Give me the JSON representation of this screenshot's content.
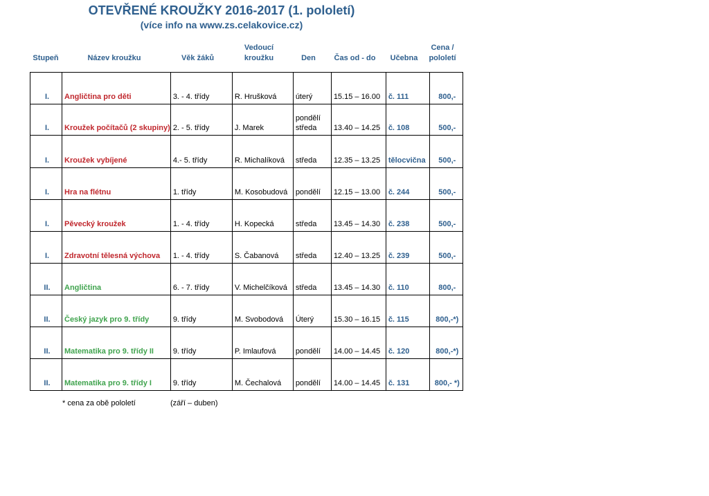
{
  "title": "OTEVŘENÉ KROUŽKY 2016-2017 (1. pololetí)",
  "subtitle": "(více info na www.zs.celakovice.cz)",
  "headers": {
    "level": "Stupeň",
    "name": "Název kroužku",
    "age": "Věk žáků",
    "leader_1": "Vedoucí",
    "leader_2": "kroužku",
    "day": "Den",
    "time": "Čas od - do",
    "room": "Učebna",
    "price_1": "Cena /",
    "price_2": "pololetí"
  },
  "colors": {
    "header": "#2E5F8E",
    "first_level": "#C0272D",
    "second_level": "#3FA34D"
  },
  "rows": [
    {
      "level": "I.",
      "name": "Angličtina pro děti",
      "age": "3. - 4. třídy",
      "leader": "R. Hrušková",
      "day": "úterý",
      "time": "15.15 – 16.00",
      "room": "č. 111",
      "price": "800,-"
    },
    {
      "level": "I.",
      "name": "Kroužek počítačů (2 skupiny)",
      "age": "2. - 5. třídy",
      "leader": "J. Marek",
      "day": "pondělí středa",
      "time": "13.40 – 14.25",
      "room": "č. 108",
      "price": "500,-"
    },
    {
      "level": "I.",
      "name": "Kroužek vybíjené",
      "age": "4.- 5. třídy",
      "leader": "R. Michalíková",
      "day": "středa",
      "time": "12.35 – 13.25",
      "room": "tělocvična",
      "price": "500,-"
    },
    {
      "level": "I.",
      "name": "Hra  na flétnu",
      "age": "1. třídy",
      "leader": "M. Kosobudová",
      "day": "pondělí",
      "time": "12.15 – 13.00",
      "room": "č. 244",
      "price": "500,-"
    },
    {
      "level": "I.",
      "name": "Pěvecký kroužek",
      "age": "1. - 4. třídy",
      "leader": "H. Kopecká",
      "day": "středa",
      "time": "13.45 – 14.30",
      "room": "č. 238",
      "price": "500,-"
    },
    {
      "level": "I.",
      "name": "Zdravotní tělesná výchova",
      "age": "1. - 4. třídy",
      "leader": "S. Čabanová",
      "day": "středa",
      "time": "12.40 – 13.25",
      "room": "č. 239",
      "price": "500,-"
    },
    {
      "level": "II.",
      "name": "Angličtina",
      "age": "6. - 7. třídy",
      "leader": "V. Michelčíková",
      "day": "středa",
      "time": "13.45 – 14.30",
      "room": "č. 110",
      "price": "800,-"
    },
    {
      "level": "II.",
      "name": "Český jazyk pro 9. třídy",
      "age": "9. třídy",
      "leader": "M. Svobodová",
      "day": "Úterý",
      "time": "15.30 – 16.15",
      "room": "č. 115",
      "price": "800,-*)"
    },
    {
      "level": "II.",
      "name": "Matematika pro 9. třídy II",
      "age": "9. třídy",
      "leader": "P. Imlaufová",
      "day": "pondělí",
      "time": "14.00 – 14.45",
      "room": "č. 120",
      "price": "800,-*)"
    },
    {
      "level": "II.",
      "name": "Matematika pro 9. třídy  I",
      "age": "9. třídy",
      "leader": "M. Čechalová",
      "day": "pondělí",
      "time": "14.00 – 14.45",
      "room": "č. 131",
      "price": "800,- *)"
    }
  ],
  "footnote": {
    "note": "* cena za obě pololetí",
    "period": "(září – duben)"
  }
}
